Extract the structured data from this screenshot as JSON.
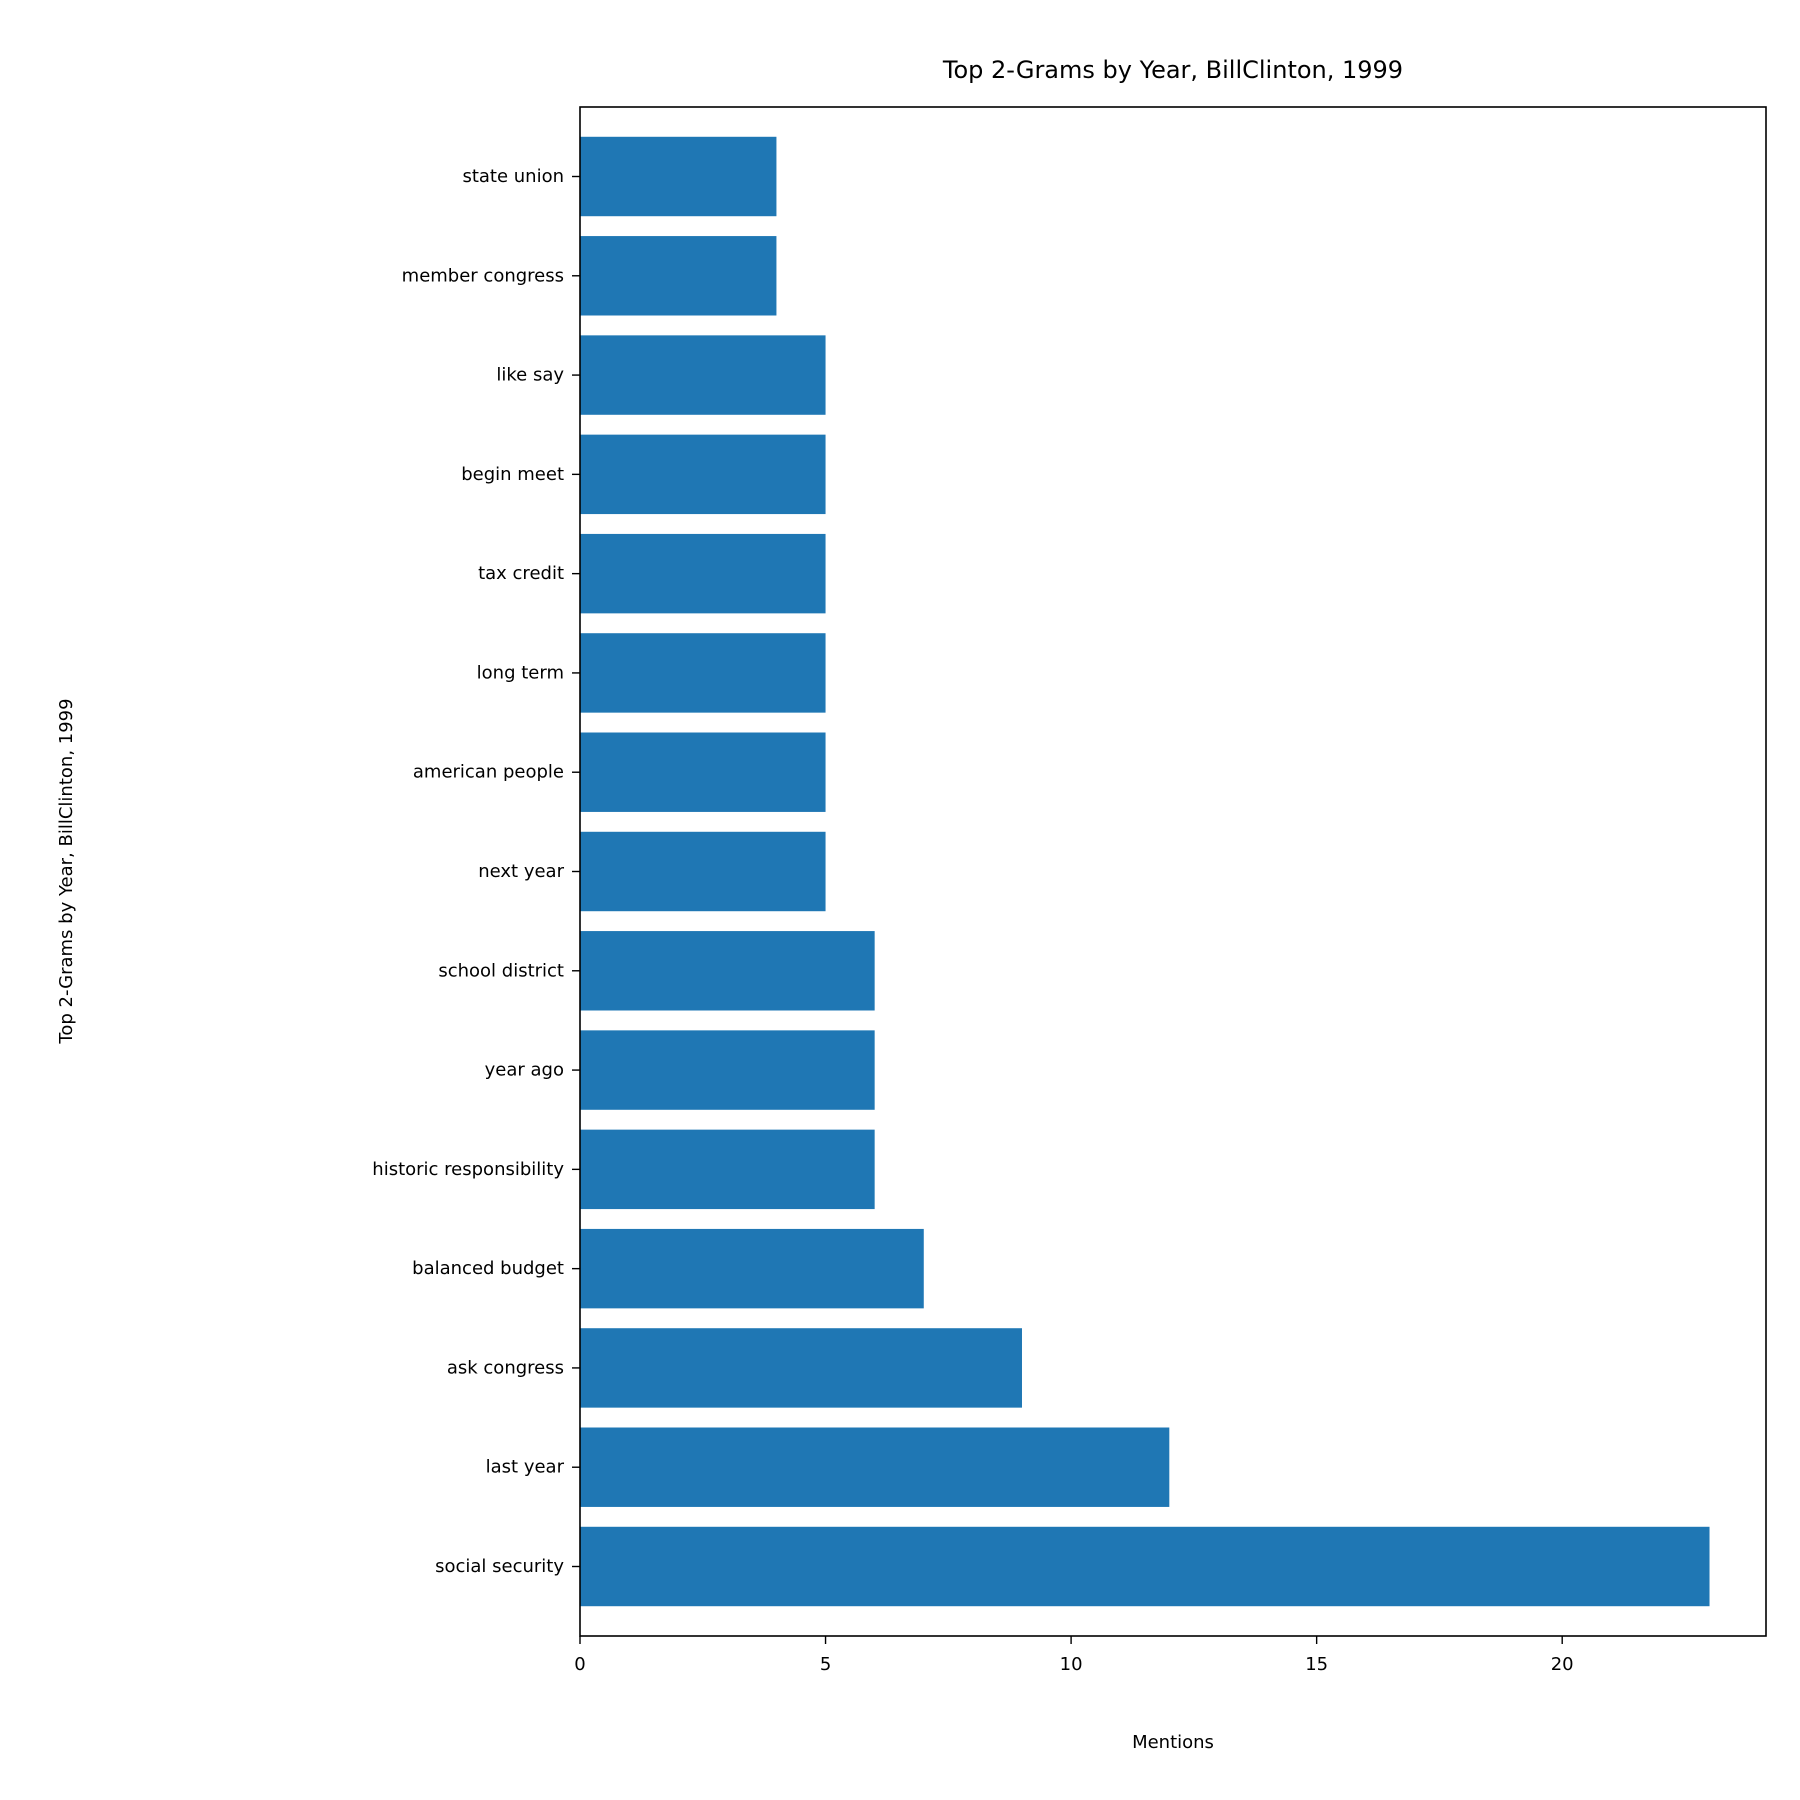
{
  "chart_data": {
    "type": "bar",
    "orientation": "horizontal",
    "title": "Top 2-Grams by Year, BillClinton, 1999",
    "xlabel": "Mentions",
    "ylabel": "Top 2-Grams by Year, BillClinton, 1999",
    "categories": [
      "social security",
      "last year",
      "ask congress",
      "balanced budget",
      "historic responsibility",
      "year ago",
      "school district",
      "next year",
      "american people",
      "long term",
      "tax credit",
      "begin meet",
      "like say",
      "member congress",
      "state union"
    ],
    "values": [
      23,
      12,
      9,
      7,
      6,
      6,
      6,
      5,
      5,
      5,
      5,
      5,
      5,
      4,
      4
    ],
    "xlim": [
      0,
      24.15
    ],
    "xticks": [
      0,
      5,
      10,
      15,
      20
    ],
    "xtick_labels": [
      "0",
      "5",
      "10",
      "15",
      "20"
    ],
    "bar_color": "#1f77b4",
    "grid": false,
    "legend": "none"
  }
}
